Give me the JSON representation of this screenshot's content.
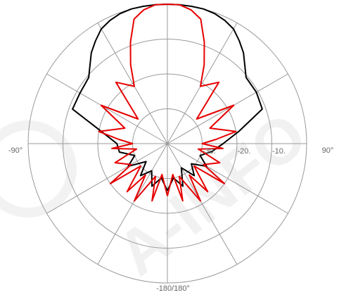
{
  "chart_data": {
    "type": "polar-line",
    "title": "",
    "angle_unit": "degrees",
    "angle_zero": "top",
    "angle_direction": "clockwise",
    "radial_unit": "dB",
    "radial_range": [
      -40,
      0
    ],
    "radial_rings": [
      -40,
      -30,
      -20,
      -10,
      0
    ],
    "radial_tick_labels": [
      "-30.",
      "-20.",
      "-10."
    ],
    "spoke_step_deg": 30,
    "angle_tick_labels": {
      "left": "-90°",
      "right": "90°",
      "bottom": "-180/180°"
    },
    "grid": true,
    "legend": "none",
    "series": [
      {
        "color": "#000000",
        "angles": [
          -180,
          -170,
          -160,
          -150,
          -140,
          -130,
          -120,
          -110,
          -100,
          -90,
          -80,
          -70,
          -60,
          -50,
          -40,
          -35,
          -30,
          -25,
          -20,
          -15,
          -10,
          -5,
          0,
          5,
          10,
          15,
          20,
          25,
          30,
          35,
          40,
          50,
          60,
          70,
          80,
          90,
          100,
          110,
          120,
          130,
          140,
          150,
          160,
          170,
          180
        ],
        "values": [
          -26.5,
          -30,
          -27,
          -31,
          -28,
          -32,
          -27,
          -30,
          -26,
          -25.5,
          -21,
          -11,
          -11,
          -10.5,
          -6,
          -4,
          -2,
          -1,
          -0.3,
          0,
          0,
          0,
          0,
          0,
          0,
          0,
          -0.3,
          -1,
          -2,
          -4,
          -6,
          -10.5,
          -10.5,
          -11,
          -19,
          -24,
          -27,
          -30,
          -27,
          -31,
          -28,
          -32,
          -27,
          -30,
          -26.5
        ]
      },
      {
        "color": "#e60000",
        "angles": [
          -180,
          -170,
          -165,
          -160,
          -150,
          -145,
          -140,
          -130,
          -125,
          -120,
          -110,
          -100,
          -95,
          -90,
          -85,
          -80,
          -70,
          -60,
          -50,
          -40,
          -30,
          -25,
          -20,
          -15,
          -10,
          -5,
          0,
          5,
          10,
          15,
          20,
          25,
          30,
          40,
          50,
          60,
          70,
          80,
          85,
          90,
          95,
          100,
          110,
          120,
          125,
          130,
          140,
          145,
          150,
          160,
          165,
          170,
          180
        ],
        "values": [
          -25,
          -31,
          -23,
          -30,
          -21,
          -29,
          -22,
          -30,
          -20,
          -28,
          -24,
          -31,
          -24,
          -30,
          -26,
          -20,
          -27,
          -18,
          -29,
          -17,
          -21,
          -15,
          -9,
          -3,
          -1,
          0,
          0,
          0,
          -1,
          -3,
          -9,
          -15,
          -21,
          -17,
          -29,
          -18,
          -27,
          -20,
          -26,
          -30,
          -24,
          -31,
          -24,
          -28,
          -20,
          -30,
          -22,
          -29,
          -21,
          -30,
          -23,
          -31,
          -25
        ]
      }
    ]
  },
  "watermark": {
    "text": "A-INFO",
    "color": "#d9d9d9"
  }
}
